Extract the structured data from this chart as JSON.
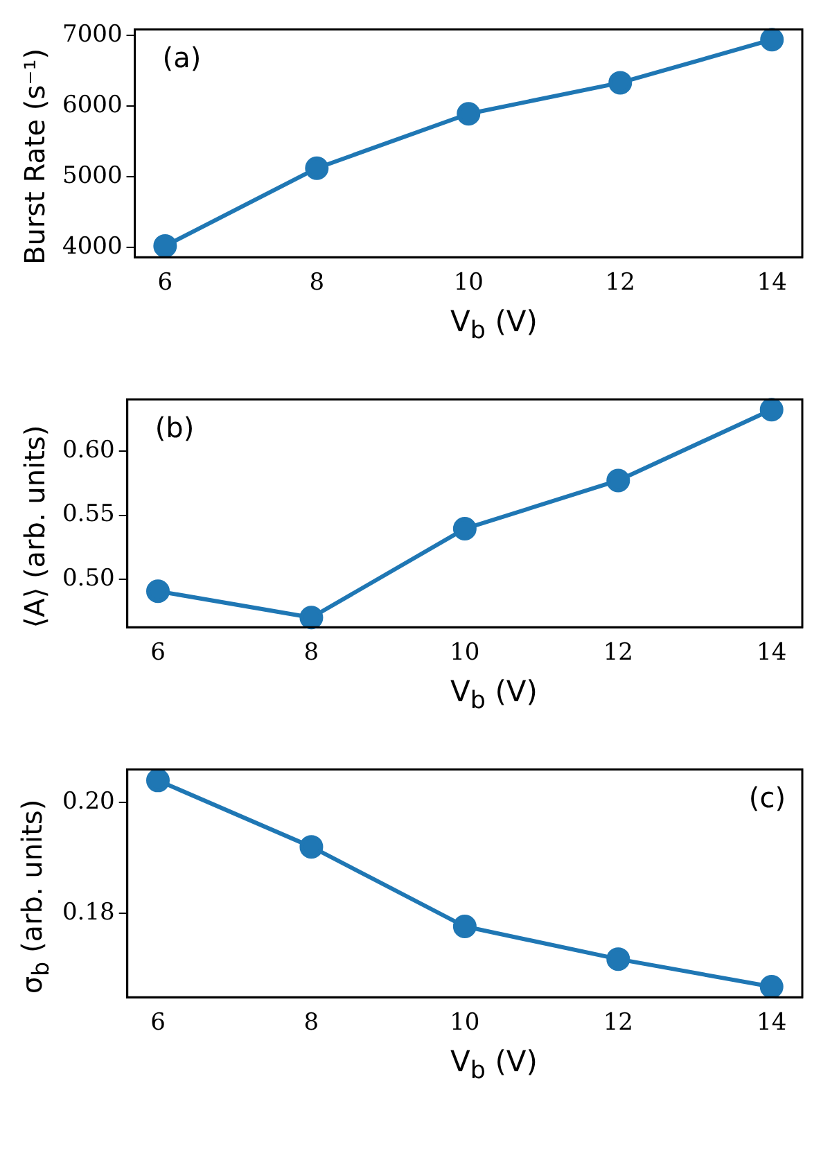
{
  "chart_data": [
    {
      "type": "line",
      "xlabel": "V$_{b}$ (V)",
      "ylabel": "Burst Rate (s⁻¹)",
      "x": [
        6,
        8,
        10,
        12,
        14
      ],
      "values": [
        4020,
        5120,
        5890,
        6330,
        6940
      ],
      "color": "#1f77b4",
      "marker": "circle",
      "xlim": [
        5.6,
        14.4
      ],
      "ylim": [
        3860,
        7085
      ],
      "xticks": [
        6,
        8,
        10,
        12,
        14
      ],
      "yticks": [
        4000,
        5000,
        6000,
        7000
      ],
      "annotations": [
        "(a)"
      ]
    },
    {
      "type": "line",
      "xlabel": "V$_{b}$ (V)",
      "ylabel": "⟨A⟩ (arb. units)",
      "x": [
        6,
        8,
        10,
        12,
        14
      ],
      "values": [
        0.491,
        0.4705,
        0.5395,
        0.577,
        0.632
      ],
      "color": "#1f77b4",
      "marker": "circle",
      "xlim": [
        5.6,
        14.4
      ],
      "ylim": [
        0.463,
        0.64
      ],
      "xticks": [
        6,
        8,
        10,
        12,
        14
      ],
      "yticks": [
        {
          "value": 0.5,
          "label": "0.50"
        },
        {
          "value": 0.55,
          "label": "0.55"
        },
        {
          "value": 0.6,
          "label": "0.60"
        }
      ],
      "annotations": [
        "(b)"
      ]
    },
    {
      "type": "line",
      "xlabel": "V$_{b}$ (V)",
      "ylabel": "σ$_{b}$ (arb. units)",
      "x": [
        6,
        8,
        10,
        12,
        14
      ],
      "values": [
        0.204,
        0.192,
        0.1776,
        0.1717,
        0.1667
      ],
      "color": "#1f77b4",
      "marker": "circle",
      "xlim": [
        5.6,
        14.4
      ],
      "ylim": [
        0.1648,
        0.206
      ],
      "xticks": [
        6,
        8,
        10,
        12,
        14
      ],
      "yticks": [
        {
          "value": 0.18,
          "label": "0.18"
        },
        {
          "value": 0.2,
          "label": "0.20"
        }
      ],
      "annotations": [
        "(c)"
      ]
    }
  ]
}
